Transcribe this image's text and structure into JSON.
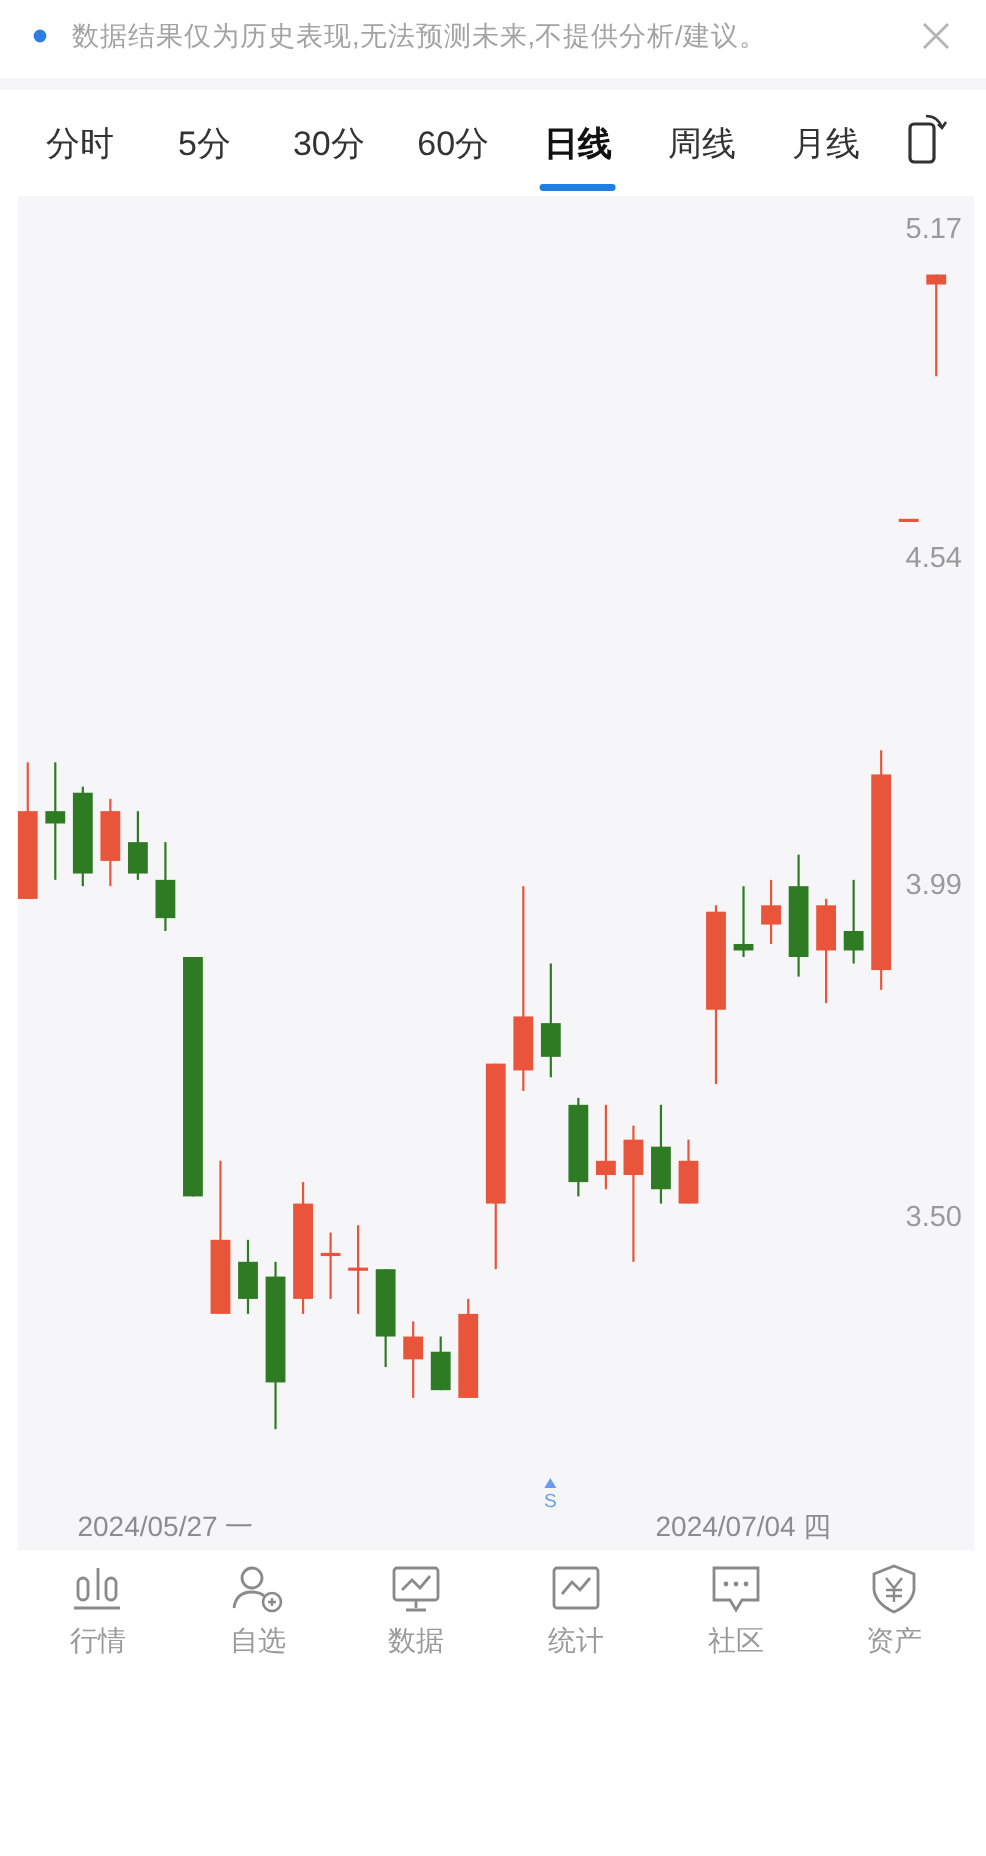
{
  "chart_data": {
    "type": "candlestick",
    "categories": [
      null,
      null,
      null,
      null,
      null,
      "2024/05/27 一",
      null,
      null,
      null,
      null,
      null,
      null,
      null,
      null,
      null,
      null,
      null,
      null,
      null,
      null,
      null,
      null,
      null,
      null,
      null,
      null,
      "2024/07/04 四",
      null,
      null,
      null,
      null,
      null,
      null,
      null
    ],
    "ohlc": [
      [
        3.97,
        4.19,
        3.97,
        4.11
      ],
      [
        4.11,
        4.19,
        4.0,
        4.09
      ],
      [
        4.14,
        4.15,
        3.99,
        4.01
      ],
      [
        4.03,
        4.13,
        3.99,
        4.11
      ],
      [
        4.06,
        4.11,
        4.0,
        4.01
      ],
      [
        4.0,
        4.06,
        3.92,
        3.94
      ],
      [
        3.88,
        3.88,
        3.53,
        3.53
      ],
      [
        3.37,
        3.58,
        3.37,
        3.47
      ],
      [
        3.44,
        3.47,
        3.37,
        3.39
      ],
      [
        3.42,
        3.44,
        3.22,
        3.28
      ],
      [
        3.39,
        3.55,
        3.37,
        3.52
      ],
      [
        3.45,
        3.48,
        3.39,
        3.45
      ],
      [
        3.43,
        3.49,
        3.37,
        3.43
      ],
      [
        3.43,
        3.43,
        3.3,
        3.34
      ],
      [
        3.31,
        3.36,
        3.26,
        3.34
      ],
      [
        3.32,
        3.34,
        3.27,
        3.27
      ],
      [
        3.26,
        3.39,
        3.26,
        3.37
      ],
      [
        3.52,
        3.72,
        3.43,
        3.72
      ],
      [
        3.71,
        3.99,
        3.68,
        3.79
      ],
      [
        3.78,
        3.87,
        3.7,
        3.73
      ],
      [
        3.66,
        3.67,
        3.53,
        3.55
      ],
      [
        3.56,
        3.66,
        3.54,
        3.58
      ],
      [
        3.56,
        3.63,
        3.44,
        3.61
      ],
      [
        3.6,
        3.66,
        3.52,
        3.54
      ],
      [
        3.52,
        3.61,
        3.52,
        3.58
      ],
      [
        3.8,
        3.96,
        3.69,
        3.95
      ],
      [
        3.9,
        3.99,
        3.88,
        3.89
      ],
      [
        3.93,
        4.0,
        3.9,
        3.96
      ],
      [
        3.99,
        4.04,
        3.85,
        3.88
      ],
      [
        3.89,
        3.97,
        3.81,
        3.96
      ],
      [
        3.92,
        4.0,
        3.87,
        3.89
      ],
      [
        3.86,
        4.21,
        3.83,
        4.17
      ],
      [
        4.61,
        4.61,
        4.61,
        4.61
      ],
      [
        5.06,
        5.08,
        4.88,
        5.08
      ]
    ],
    "colors": [
      "#e8553a",
      "#2e7b23",
      "#2e7b23",
      "#e8553a",
      "#2e7b23",
      "#2e7b23",
      "#2e7b23",
      "#e8553a",
      "#2e7b23",
      "#2e7b23",
      "#e8553a",
      "#e8553a",
      "#e8553a",
      "#2e7b23",
      "#e8553a",
      "#2e7b23",
      "#e8553a",
      "#e8553a",
      "#e8553a",
      "#2e7b23",
      "#2e7b23",
      "#e8553a",
      "#e8553a",
      "#2e7b23",
      "#e8553a",
      "#e8553a",
      "#2e7b23",
      "#e8553a",
      "#2e7b23",
      "#e8553a",
      "#2e7b23",
      "#e8553a",
      "#e8553a",
      "#e8553a"
    ],
    "log": true,
    "ylim": [
      3.07,
      5.24
    ],
    "yticks": [
      5.17,
      4.54,
      3.99,
      {
        "value": 3.5,
        "label": "3.50"
      }
    ],
    "annotations": [
      "数据结果仅为历史表现,无法预测未来,不提供分析/建议。",
      "分时",
      "5分",
      "30分",
      "60分",
      "日线",
      "周线",
      "月线",
      "S",
      "行情",
      "自选",
      "数据",
      "统计",
      "社区",
      "资产"
    ]
  }
}
